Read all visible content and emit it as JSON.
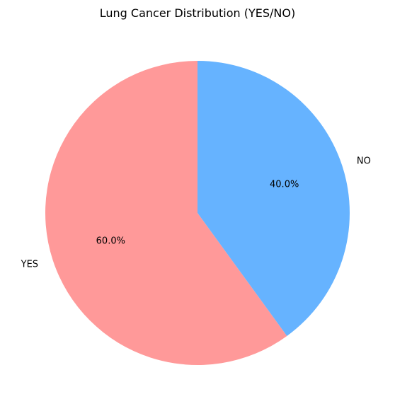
{
  "chart_data": {
    "type": "pie",
    "title": "Lung Cancer Distribution (YES/NO)",
    "slices": [
      {
        "label": "YES",
        "value": 60.0,
        "display": "60.0%",
        "color": "#ff9999"
      },
      {
        "label": "NO",
        "value": 40.0,
        "display": "40.0%",
        "color": "#66b3ff"
      }
    ],
    "start_angle_deg": 90,
    "direction": "counterclockwise",
    "legend": "none"
  }
}
